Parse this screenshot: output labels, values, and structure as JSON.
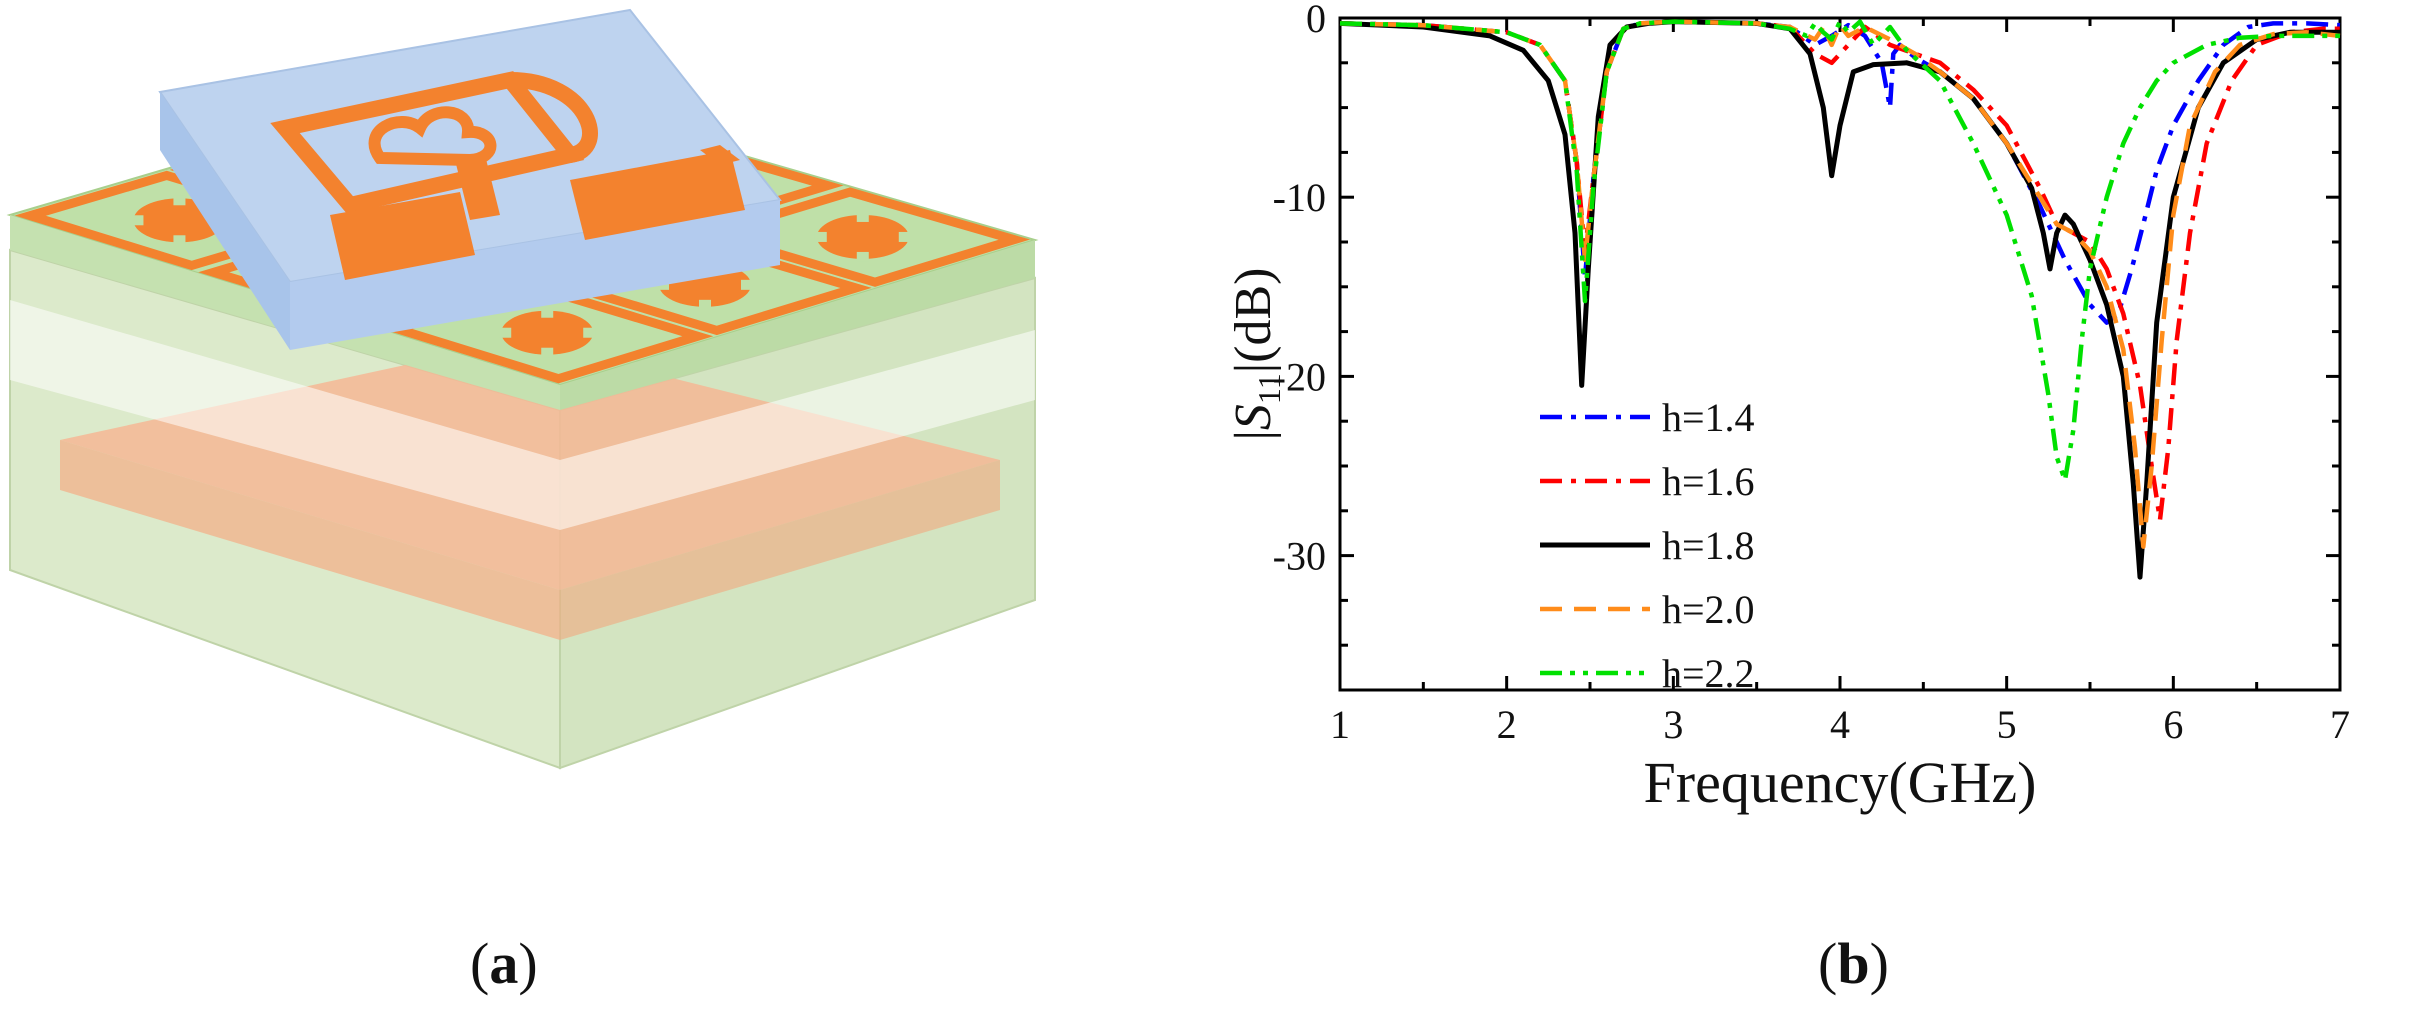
{
  "panel_a": {
    "label_open": "(",
    "label_letter": "a",
    "label_close": ")",
    "colors": {
      "substrate_green": "#c8e2b4",
      "metal_orange": "#f3822e",
      "top_substrate_blue": "#b9d1ee",
      "ground_plane": "#f4b08a"
    }
  },
  "panel_b": {
    "label_open": "(",
    "label_letter": "b",
    "label_close": ")"
  },
  "chart_data": {
    "type": "line",
    "title": "",
    "xlabel": "Frequency(GHz)",
    "ylabel_prefix": "|",
    "ylabel_symbol": "S",
    "ylabel_subscript": "11",
    "ylabel_suffix": "|(dB)",
    "xlim": [
      1,
      7
    ],
    "ylim": [
      -37.5,
      0
    ],
    "xticks": [
      "1",
      "2",
      "3",
      "4",
      "5",
      "6",
      "7"
    ],
    "yticks": [
      "0",
      "-10",
      "-20",
      "-30"
    ],
    "ytick_values": [
      0,
      -10,
      -20,
      -30
    ],
    "grid": false,
    "legend_position": "lower-center",
    "series": [
      {
        "name": "h=1.4",
        "color": "#0000ff",
        "dash": "dashdot",
        "x": [
          1.0,
          1.5,
          2.0,
          2.2,
          2.35,
          2.42,
          2.47,
          2.52,
          2.6,
          2.7,
          2.8,
          3.0,
          3.5,
          3.7,
          3.85,
          3.95,
          4.05,
          4.15,
          4.25,
          4.3,
          4.32,
          4.36,
          4.45,
          4.6,
          4.8,
          5.0,
          5.2,
          5.35,
          5.5,
          5.6,
          5.67,
          5.75,
          5.82,
          5.9,
          6.0,
          6.15,
          6.3,
          6.45,
          6.6,
          6.8,
          7.0
        ],
        "y": [
          -0.3,
          -0.4,
          -0.8,
          -1.5,
          -3.5,
          -8.0,
          -14.5,
          -9.0,
          -3.0,
          -0.6,
          -0.3,
          -0.2,
          -0.3,
          -0.5,
          -1.5,
          -1.0,
          -0.4,
          -1.0,
          -2.5,
          -5.0,
          -2.0,
          -1.5,
          -2.2,
          -3.0,
          -4.5,
          -7.0,
          -10.5,
          -13.5,
          -16.0,
          -17.0,
          -16.5,
          -14.0,
          -11.5,
          -8.5,
          -6.0,
          -3.5,
          -1.5,
          -0.5,
          -0.3,
          -0.3,
          -0.4
        ]
      },
      {
        "name": "h=1.6",
        "color": "#ff0000",
        "dash": "dashdot",
        "x": [
          1.0,
          1.5,
          2.0,
          2.2,
          2.35,
          2.42,
          2.47,
          2.52,
          2.6,
          2.7,
          2.8,
          3.0,
          3.5,
          3.7,
          3.85,
          3.95,
          4.05,
          4.15,
          4.3,
          4.45,
          4.6,
          4.8,
          5.0,
          5.2,
          5.3,
          5.4,
          5.5,
          5.6,
          5.7,
          5.8,
          5.87,
          5.92,
          5.97,
          6.02,
          6.1,
          6.2,
          6.35,
          6.5,
          6.7,
          6.9,
          7.0
        ],
        "y": [
          -0.3,
          -0.4,
          -0.8,
          -1.5,
          -3.5,
          -8.0,
          -13.0,
          -9.0,
          -3.0,
          -0.6,
          -0.3,
          -0.2,
          -0.3,
          -0.5,
          -2.0,
          -2.5,
          -1.5,
          -0.5,
          -1.5,
          -2.0,
          -2.5,
          -4.0,
          -6.0,
          -9.5,
          -11.5,
          -12.0,
          -12.5,
          -14.0,
          -16.5,
          -20.5,
          -25.0,
          -28.0,
          -24.0,
          -18.0,
          -12.0,
          -7.0,
          -3.5,
          -1.5,
          -0.8,
          -0.6,
          -0.6
        ]
      },
      {
        "name": "h=1.8",
        "color": "#000000",
        "dash": "solid",
        "x": [
          1.0,
          1.5,
          1.9,
          2.1,
          2.25,
          2.35,
          2.41,
          2.45,
          2.49,
          2.55,
          2.62,
          2.72,
          2.85,
          3.0,
          3.5,
          3.7,
          3.82,
          3.9,
          3.95,
          4.0,
          4.08,
          4.2,
          4.4,
          4.6,
          4.8,
          5.0,
          5.15,
          5.22,
          5.26,
          5.3,
          5.35,
          5.4,
          5.5,
          5.6,
          5.7,
          5.76,
          5.8,
          5.84,
          5.9,
          6.0,
          6.15,
          6.3,
          6.5,
          6.7,
          7.0
        ],
        "y": [
          -0.3,
          -0.5,
          -1.0,
          -1.8,
          -3.5,
          -6.5,
          -12.0,
          -20.5,
          -14.0,
          -5.5,
          -1.5,
          -0.5,
          -0.3,
          -0.2,
          -0.3,
          -0.6,
          -2.0,
          -5.0,
          -8.8,
          -6.0,
          -3.0,
          -2.6,
          -2.5,
          -3.0,
          -4.5,
          -7.0,
          -9.5,
          -12.0,
          -14.0,
          -12.0,
          -11.0,
          -11.5,
          -13.5,
          -16.0,
          -20.0,
          -26.0,
          -31.2,
          -26.0,
          -17.0,
          -10.0,
          -5.0,
          -2.5,
          -1.2,
          -0.8,
          -0.8
        ]
      },
      {
        "name": "h=2.0",
        "color": "#ff8c1a",
        "dash": "dashed",
        "x": [
          1.0,
          1.5,
          2.0,
          2.2,
          2.35,
          2.42,
          2.47,
          2.52,
          2.6,
          2.7,
          2.8,
          3.0,
          3.5,
          3.7,
          3.85,
          3.9,
          3.95,
          4.0,
          4.05,
          4.15,
          4.3,
          4.45,
          4.6,
          4.8,
          5.0,
          5.2,
          5.3,
          5.4,
          5.5,
          5.6,
          5.7,
          5.77,
          5.82,
          5.87,
          5.93,
          6.0,
          6.1,
          6.25,
          6.4,
          6.6,
          6.8,
          7.0
        ],
        "y": [
          -0.3,
          -0.4,
          -0.8,
          -1.5,
          -3.5,
          -8.0,
          -13.5,
          -9.0,
          -3.0,
          -0.6,
          -0.3,
          -0.2,
          -0.3,
          -0.5,
          -1.2,
          -0.5,
          -1.5,
          -0.4,
          -1.0,
          -0.5,
          -1.2,
          -2.0,
          -3.0,
          -4.5,
          -7.0,
          -10.0,
          -11.5,
          -12.0,
          -13.0,
          -15.0,
          -18.5,
          -24.0,
          -29.5,
          -25.0,
          -18.0,
          -11.0,
          -6.0,
          -3.0,
          -1.5,
          -0.9,
          -0.8,
          -1.0
        ]
      },
      {
        "name": "h=2.2",
        "color": "#00e000",
        "dash": "dashdotdot",
        "x": [
          1.0,
          1.5,
          2.0,
          2.2,
          2.35,
          2.42,
          2.47,
          2.52,
          2.6,
          2.7,
          2.8,
          3.0,
          3.5,
          3.7,
          3.8,
          3.85,
          3.9,
          3.95,
          4.0,
          4.05,
          4.12,
          4.2,
          4.3,
          4.4,
          4.6,
          4.8,
          5.0,
          5.15,
          5.25,
          5.3,
          5.35,
          5.4,
          5.45,
          5.5,
          5.6,
          5.7,
          5.8,
          5.9,
          6.0,
          6.2,
          6.4,
          6.6,
          6.8,
          7.0
        ],
        "y": [
          -0.3,
          -0.4,
          -0.8,
          -1.5,
          -3.5,
          -8.5,
          -15.8,
          -9.5,
          -3.0,
          -0.6,
          -0.3,
          -0.2,
          -0.3,
          -0.6,
          -1.0,
          -0.3,
          -0.8,
          -1.2,
          -0.2,
          -0.8,
          -0.2,
          -1.5,
          -0.5,
          -1.8,
          -3.5,
          -7.0,
          -11.0,
          -15.5,
          -21.0,
          -24.5,
          -25.8,
          -23.0,
          -18.0,
          -14.0,
          -10.0,
          -7.0,
          -5.0,
          -3.5,
          -2.5,
          -1.5,
          -1.1,
          -1.0,
          -1.0,
          -1.0
        ]
      }
    ]
  }
}
